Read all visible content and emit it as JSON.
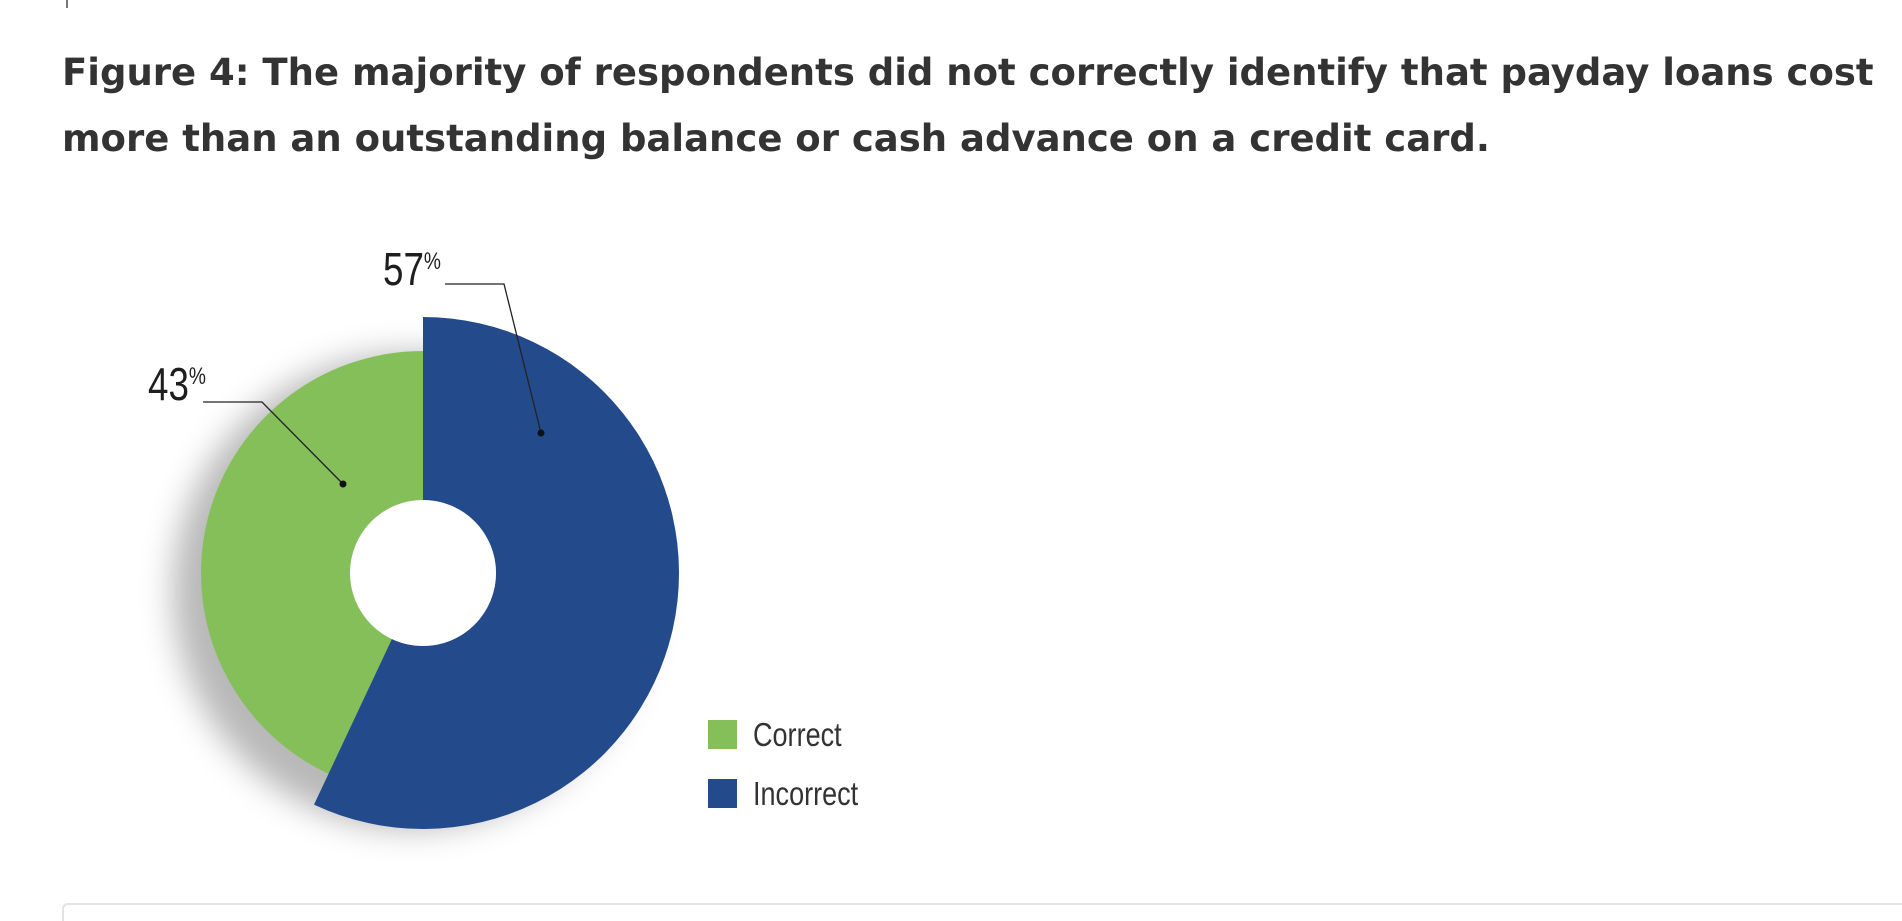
{
  "figure_title": "Figure 4: The majority of respondents did not correctly identify that payday loans cost more than an outstanding balance or cash advance on a credit card.",
  "chart_data": {
    "type": "pie",
    "donut": true,
    "title": "Figure 4: The majority of respondents did not correctly identify that payday loans cost more than an outstanding balance or cash advance on a credit card.",
    "categories": [
      "Correct",
      "Incorrect"
    ],
    "values": [
      43,
      57
    ],
    "data_labels": [
      "43%",
      "57%"
    ],
    "colors": [
      "#85bf5a",
      "#234b8c"
    ],
    "legend": {
      "placement": "bottom-right",
      "entries": [
        "Correct",
        "Incorrect"
      ]
    }
  }
}
